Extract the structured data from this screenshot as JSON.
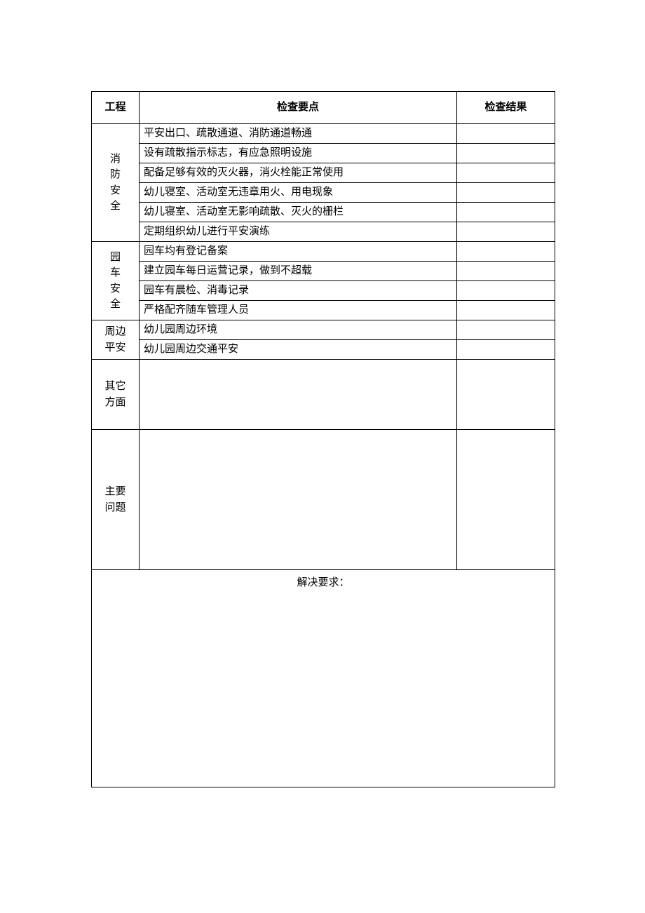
{
  "table": {
    "headers": {
      "category": "工程",
      "content": "检查要点",
      "result": "检查结果"
    },
    "sections": [
      {
        "category": "消防安全",
        "category_chars": [
          "消",
          "防",
          "安",
          "全"
        ],
        "rows": [
          "平安出口、疏散通道、消防通道畅通",
          "设有疏散指示标志，有应急照明设施",
          "配备足够有效的灭火器，消火栓能正常使用",
          "幼儿寝室、活动室无违章用火、用电现象",
          "幼儿寝室、活动室无影响疏散、灭火的栅栏",
          "定期组织幼儿进行平安演练"
        ]
      },
      {
        "category": "园车安全",
        "category_chars": [
          "园",
          "车",
          "安",
          "全"
        ],
        "rows": [
          "园车均有登记备案",
          "建立园车每日运营记录，做到不超载",
          "园车有晨检、消毒记录",
          "严格配齐随车管理人员"
        ]
      },
      {
        "category": "周边平安",
        "category_chars": [
          "周边",
          "平安"
        ],
        "rows": [
          "幼儿园周边环境",
          "幼儿园周边交通平安"
        ]
      }
    ],
    "other_aspects": {
      "label_line1": "其它",
      "label_line2": "方面",
      "content": "",
      "result": ""
    },
    "main_issues": {
      "label_line1": "主要",
      "label_line2": "问题",
      "content": "",
      "result": ""
    },
    "footer": {
      "label": "解决要求：",
      "content": ""
    }
  },
  "styling": {
    "border_color": "#000000",
    "background_color": "#ffffff",
    "text_color": "#000000",
    "font_family": "SimSun",
    "header_font_weight": "bold",
    "font_size": 15,
    "col_widths": {
      "category": 68,
      "result": 140
    }
  }
}
